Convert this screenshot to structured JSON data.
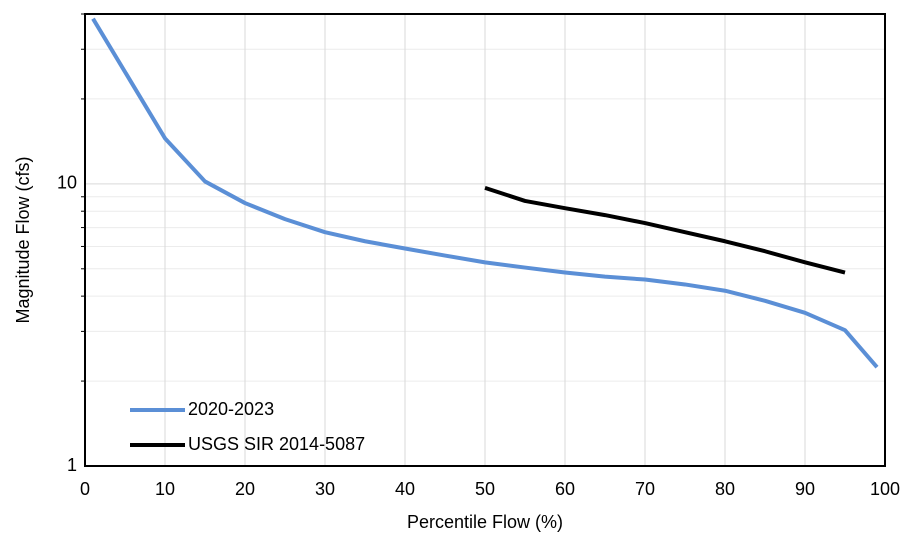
{
  "chart_data": {
    "type": "line",
    "x_label": "Percentile Flow (%)",
    "y_label": "Magnitude Flow (cfs)",
    "xlim": [
      0,
      100
    ],
    "xticks": [
      0,
      10,
      20,
      30,
      40,
      50,
      60,
      70,
      80,
      90,
      100
    ],
    "ylim": [
      1,
      40
    ],
    "yticks": [
      1,
      10
    ],
    "y_minor_grid": [
      2,
      3,
      4,
      5,
      6,
      7,
      8,
      9,
      20,
      30,
      40
    ],
    "log_y": true,
    "grid": true,
    "legend": "lower-left",
    "series": [
      {
        "name": "2020-2023",
        "color": "#5b8fd6",
        "x": [
          1,
          10,
          15,
          20,
          25,
          30,
          35,
          40,
          45,
          50,
          55,
          60,
          65,
          70,
          75,
          80,
          85,
          90,
          95,
          99
        ],
        "values": [
          38.5,
          14.5,
          10.2,
          8.55,
          7.5,
          6.74,
          6.26,
          5.9,
          5.57,
          5.27,
          5.05,
          4.85,
          4.69,
          4.58,
          4.4,
          4.18,
          3.85,
          3.49,
          3.03,
          2.24
        ]
      },
      {
        "name": "USGS SIR 2014-5087",
        "color": "#000000",
        "x": [
          50,
          55,
          60,
          65,
          70,
          75,
          80,
          85,
          90,
          95
        ],
        "values": [
          9.68,
          8.7,
          8.2,
          7.75,
          7.26,
          6.74,
          6.26,
          5.77,
          5.27,
          4.85
        ]
      }
    ]
  }
}
